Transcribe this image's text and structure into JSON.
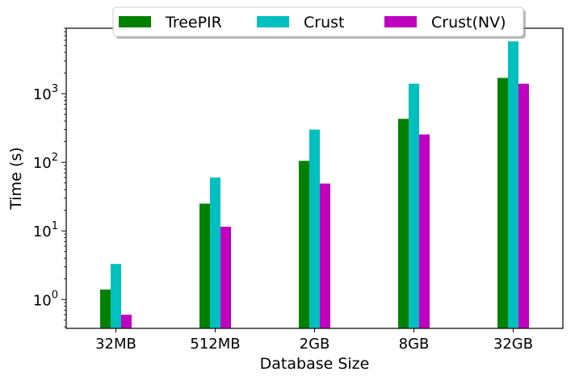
{
  "chart_data": {
    "type": "bar",
    "xlabel": "Database Size",
    "ylabel": "Time (s)",
    "yscale": "log",
    "ylim": [
      0.38,
      9000
    ],
    "yticks": [
      {
        "value": 1,
        "base": "10",
        "exp": "0"
      },
      {
        "value": 10,
        "base": "10",
        "exp": "1"
      },
      {
        "value": 100,
        "base": "10",
        "exp": "2"
      },
      {
        "value": 1000,
        "base": "10",
        "exp": "3"
      }
    ],
    "categories": [
      "32MB",
      "512MB",
      "2GB",
      "8GB",
      "32GB"
    ],
    "series": [
      {
        "name": "TreePIR",
        "color": "#008000",
        "values": [
          1.4,
          25,
          105,
          430,
          1700
        ]
      },
      {
        "name": "Crust",
        "color": "#00bfbf",
        "values": [
          3.3,
          60,
          300,
          1400,
          5800
        ]
      },
      {
        "name": "Crust(NV)",
        "color": "#bf00bf",
        "values": [
          0.6,
          11.5,
          49,
          255,
          1400
        ]
      }
    ],
    "legend_position": "top-center",
    "grid": false
  }
}
